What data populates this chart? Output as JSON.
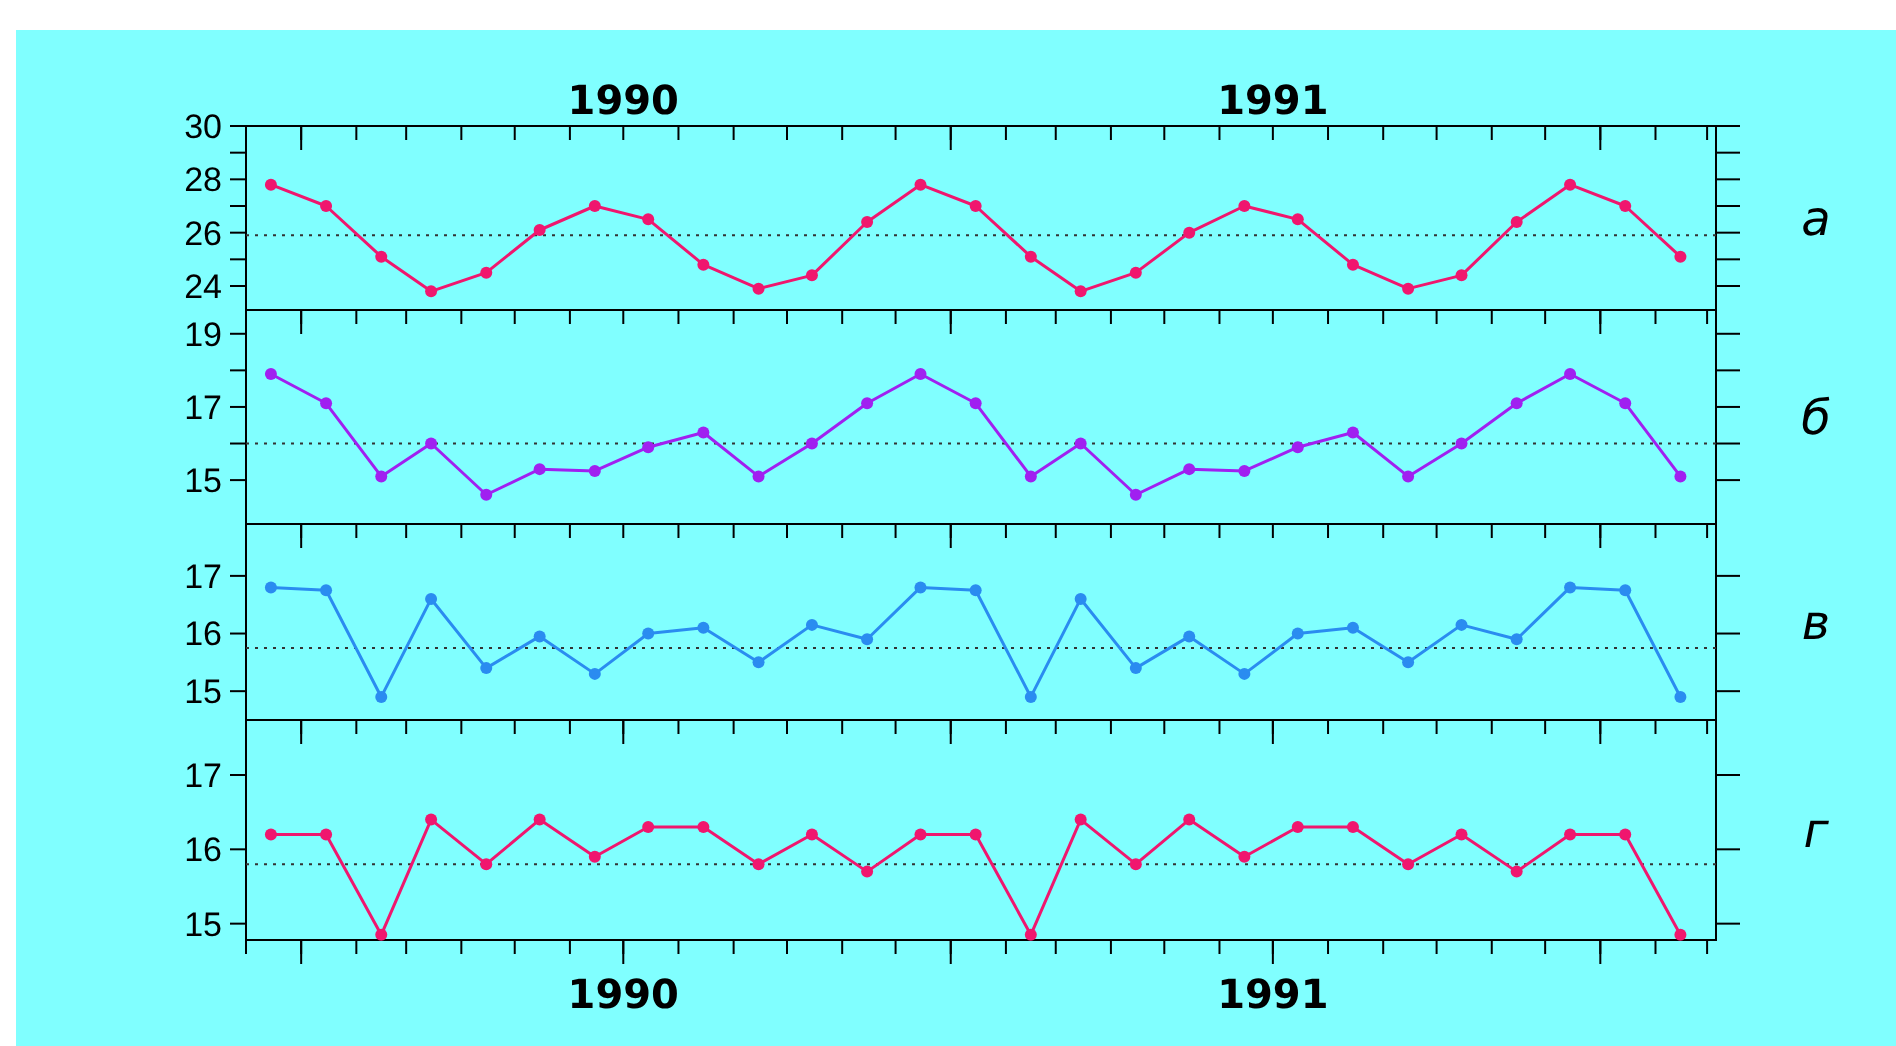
{
  "chart_data": [
    {
      "type": "line",
      "marker": "circle",
      "x": [
        "1989-12-15",
        "1990-01-15",
        "1990-02-15",
        "1990-03-15",
        "1990-04-15",
        "1990-05-15",
        "1990-06-15",
        "1990-07-15",
        "1990-08-15",
        "1990-09-15",
        "1990-10-15",
        "1990-11-15",
        "1990-12-15",
        "1991-01-15",
        "1991-02-15",
        "1991-03-15",
        "1991-04-15",
        "1991-05-15",
        "1991-06-15",
        "1991-07-15",
        "1991-08-15",
        "1991-09-15",
        "1991-10-15",
        "1991-11-15",
        "1991-12-15",
        "1992-01-15",
        "1992-02-15"
      ],
      "series": [
        {
          "color": "#f0166e",
          "values": [
            27.8,
            27,
            25.1,
            23.8,
            24.5,
            26.1,
            27,
            26.5,
            24.8,
            23.9,
            24.4,
            26.4,
            27.8,
            27,
            25.1,
            23.8,
            24.5,
            26,
            27,
            26.5,
            24.8,
            23.9,
            24.4,
            26.4,
            27.8,
            27,
            25.1
          ]
        }
      ],
      "xlim": [
        "1989-12",
        "1992-03-06"
      ],
      "xticks": [
        {
          "value": "1990-01",
          "label": null
        },
        {
          "value": "1991-01",
          "label": null
        },
        {
          "value": "1992-01",
          "label": null
        }
      ],
      "x2lim": [
        "1989-12",
        "1992-03-06"
      ],
      "x2ticks": [
        {
          "value": "1990-07",
          "label": "1990"
        },
        {
          "value": "1991-07",
          "label": "1991"
        }
      ],
      "ylim": [
        23.1,
        30
      ],
      "yticks": [
        24,
        {
          "value": 25,
          "label": null
        },
        26,
        {
          "value": 27,
          "label": null
        },
        28,
        {
          "value": 29,
          "label": null
        },
        30
      ],
      "tick_labels": "y",
      "ref_lines": [
        {
          "axis": "y",
          "value": 25.9,
          "line_style": "dotted"
        }
      ],
      "annotations": [
        "а"
      ]
    },
    {
      "type": "line",
      "marker": "circle",
      "x": [
        "1989-12-15",
        "1990-01-15",
        "1990-02-15",
        "1990-03-15",
        "1990-04-15",
        "1990-05-15",
        "1990-06-15",
        "1990-07-15",
        "1990-08-15",
        "1990-09-15",
        "1990-10-15",
        "1990-11-15",
        "1990-12-15",
        "1991-01-15",
        "1991-02-15",
        "1991-03-15",
        "1991-04-15",
        "1991-05-15",
        "1991-06-15",
        "1991-07-15",
        "1991-08-15",
        "1991-09-15",
        "1991-10-15",
        "1991-11-15",
        "1991-12-15",
        "1992-01-15",
        "1992-02-15"
      ],
      "series": [
        {
          "color": "#a020f0",
          "values": [
            17.9,
            17.1,
            15.1,
            16,
            14.6,
            15.3,
            15.25,
            15.9,
            16.3,
            15.1,
            16,
            17.1,
            17.9,
            17.1,
            15.1,
            16,
            14.6,
            15.3,
            15.25,
            15.9,
            16.3,
            15.1,
            16,
            17.1,
            17.9,
            17.1,
            15.1
          ]
        }
      ],
      "xlim": [
        "1989-12",
        "1992-03-06"
      ],
      "xticks": [
        {
          "value": "1990-01",
          "label": null
        },
        {
          "value": "1991-01",
          "label": null
        },
        {
          "value": "1992-01",
          "label": null
        }
      ],
      "ylim": [
        13.8,
        19.65
      ],
      "yticks": [
        15,
        {
          "value": 16,
          "label": null
        },
        17,
        {
          "value": 18,
          "label": null
        },
        19
      ],
      "tick_labels": "y",
      "ref_lines": [
        {
          "axis": "y",
          "value": 16,
          "line_style": "dotted"
        }
      ],
      "annotations": [
        "б"
      ]
    },
    {
      "type": "line",
      "marker": "circle",
      "x": [
        "1989-12-15",
        "1990-01-15",
        "1990-02-15",
        "1990-03-15",
        "1990-04-15",
        "1990-05-15",
        "1990-06-15",
        "1990-07-15",
        "1990-08-15",
        "1990-09-15",
        "1990-10-15",
        "1990-11-15",
        "1990-12-15",
        "1991-01-15",
        "1991-02-15",
        "1991-03-15",
        "1991-04-15",
        "1991-05-15",
        "1991-06-15",
        "1991-07-15",
        "1991-08-15",
        "1991-09-15",
        "1991-10-15",
        "1991-11-15",
        "1991-12-15",
        "1992-01-15",
        "1992-02-15"
      ],
      "series": [
        {
          "color": "#2a8cf0",
          "values": [
            16.8,
            16.75,
            14.9,
            16.6,
            15.4,
            15.95,
            15.3,
            16,
            16.1,
            15.5,
            16.15,
            15.9,
            16.8,
            16.75,
            14.9,
            16.6,
            15.4,
            15.95,
            15.3,
            16,
            16.1,
            15.5,
            16.15,
            15.9,
            16.8,
            16.75,
            14.9
          ]
        }
      ],
      "xlim": [
        "1989-12",
        "1992-03-06"
      ],
      "xticks": [
        {
          "value": "1990-01",
          "label": null
        },
        {
          "value": "1991-01",
          "label": null
        },
        {
          "value": "1992-01",
          "label": null
        }
      ],
      "ylim": [
        14.5,
        17.9
      ],
      "yticks": [
        15,
        16,
        17
      ],
      "tick_labels": "y",
      "ref_lines": [
        {
          "axis": "y",
          "value": 15.75,
          "line_style": "dotted"
        }
      ],
      "annotations": [
        "в"
      ]
    },
    {
      "type": "line",
      "marker": "circle",
      "x": [
        "1989-12-15",
        "1990-01-15",
        "1990-02-15",
        "1990-03-15",
        "1990-04-15",
        "1990-05-15",
        "1990-06-15",
        "1990-07-15",
        "1990-08-15",
        "1990-09-15",
        "1990-10-15",
        "1990-11-15",
        "1990-12-15",
        "1991-01-15",
        "1991-02-15",
        "1991-03-15",
        "1991-04-15",
        "1991-05-15",
        "1991-06-15",
        "1991-07-15",
        "1991-08-15",
        "1991-09-15",
        "1991-10-15",
        "1991-11-15",
        "1991-12-15",
        "1992-01-15",
        "1992-02-15"
      ],
      "series": [
        {
          "color": "#f0166e",
          "values": [
            16.2,
            16.2,
            14.85,
            16.4,
            15.8,
            16.4,
            15.9,
            16.3,
            16.3,
            15.8,
            16.2,
            15.7,
            16.2,
            16.2,
            14.85,
            16.4,
            15.8,
            16.4,
            15.9,
            16.3,
            16.3,
            15.8,
            16.2,
            15.7,
            16.2,
            16.2,
            14.85
          ]
        }
      ],
      "xlim": [
        "1989-12",
        "1992-03-06"
      ],
      "xticks": [
        {
          "value": "1990-01",
          "label": null
        },
        {
          "value": "1990-07",
          "label": "1990"
        },
        {
          "value": "1991-01",
          "label": null
        },
        {
          "value": "1991-07",
          "label": "1991"
        },
        {
          "value": "1992-01",
          "label": null
        }
      ],
      "ylim": [
        14.78,
        17.74
      ],
      "yticks": [
        15,
        16,
        17
      ],
      "ref_lines": [
        {
          "axis": "y",
          "value": 15.8,
          "line_style": "dotted"
        }
      ],
      "annotations": [
        "г"
      ]
    }
  ]
}
